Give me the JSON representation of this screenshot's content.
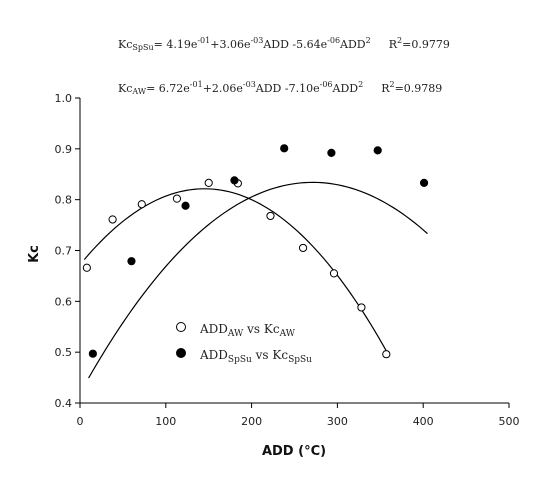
{
  "chart_data": {
    "type": "scatter",
    "xlabel": "ADD (°C)",
    "ylabel": "Kc",
    "xlim": [
      0,
      500
    ],
    "ylim": [
      0.4,
      1.0
    ],
    "xticks": [
      0,
      100,
      200,
      300,
      400,
      500
    ],
    "yticks": [
      "0.4",
      "0.5",
      "0.6",
      "0.7",
      "0.8",
      "0.9",
      "1.0"
    ],
    "grid": false,
    "legend_position": "bottom-left",
    "series": [
      {
        "marker": "open-circle",
        "x": [
          8,
          38,
          72,
          113,
          150,
          184,
          222,
          260,
          296,
          328,
          357
        ],
        "y": [
          0.666,
          0.761,
          0.791,
          0.802,
          0.833,
          0.832,
          0.768,
          0.705,
          0.655,
          0.588,
          0.496
        ],
        "fit": {
          "a": 0.672,
          "b": 0.00206,
          "c": -7.1e-06
        },
        "fit_range": [
          5,
          360
        ]
      },
      {
        "marker": "filled-circle",
        "x": [
          15,
          60,
          123,
          180,
          238,
          293,
          347,
          401
        ],
        "y": [
          0.497,
          0.679,
          0.788,
          0.838,
          0.901,
          0.892,
          0.897,
          0.833
        ],
        "fit": {
          "a": 0.419,
          "b": 0.00306,
          "c": -5.64e-06
        },
        "fit_range": [
          10,
          405
        ]
      }
    ],
    "equations": [
      {
        "lhs": "Kc",
        "lhs_sub": "SpSu",
        "t1": "= 4.19e",
        "t1_exp": "-01",
        "t2": "+3.06e",
        "t2_exp": "-03",
        "t3": "ADD -5.64e",
        "t3_exp": "-06",
        "t4": "ADD",
        "t4_exp": "2",
        "r2": "R",
        "r2_exp": "2",
        "r2_val": "=0.9779"
      },
      {
        "lhs": "Kc",
        "lhs_sub": "AW",
        "t1": "= 6.72e",
        "t1_exp": "-01",
        "t2": "+2.06e",
        "t2_exp": "-03",
        "t3": "ADD -7.10e",
        "t3_exp": "-06",
        "t4": "ADD",
        "t4_exp": "2",
        "r2": "R",
        "r2_exp": "2",
        "r2_val": "=0.9789"
      }
    ],
    "legend": [
      {
        "p1": "ADD",
        "p1_sub": "AW",
        "p2": " vs Kc",
        "p2_sub": "AW"
      },
      {
        "p1": "ADD",
        "p1_sub": "SpSu",
        "p2": " vs Kc",
        "p2_sub": "SpSu"
      }
    ]
  }
}
